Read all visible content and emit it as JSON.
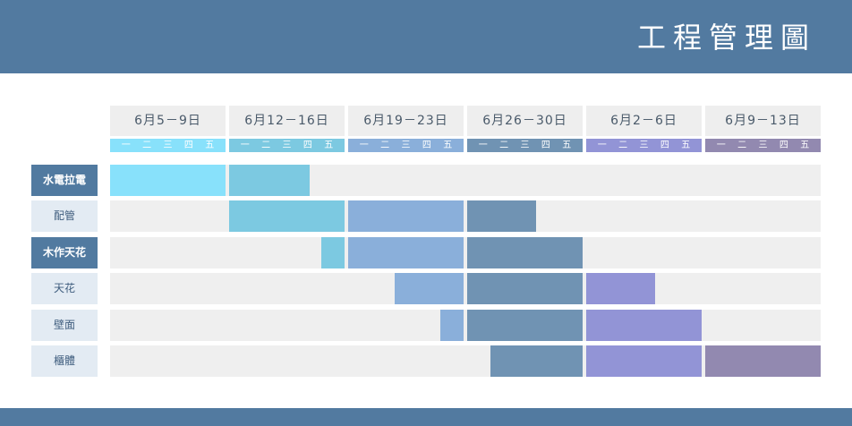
{
  "title": "工程管理圖",
  "colors": {
    "banner": "#527aa0",
    "track": "#efefef",
    "week_colors": [
      "#88e1fb",
      "#7cc9e1",
      "#8aafda",
      "#7093b3",
      "#9294d6",
      "#9289b0"
    ]
  },
  "chart_data": {
    "type": "gantt",
    "weeks": [
      {
        "label": "6月5－9日",
        "days": [
          "一",
          "二",
          "三",
          "四",
          "五"
        ]
      },
      {
        "label": "6月12－16日",
        "days": [
          "一",
          "二",
          "三",
          "四",
          "五"
        ]
      },
      {
        "label": "6月19－23日",
        "days": [
          "一",
          "二",
          "三",
          "四",
          "五"
        ]
      },
      {
        "label": "6月26－30日",
        "days": [
          "一",
          "二",
          "三",
          "四",
          "五"
        ]
      },
      {
        "label": "6月2－6日",
        "days": [
          "一",
          "二",
          "三",
          "四",
          "五"
        ]
      },
      {
        "label": "6月9－13日",
        "days": [
          "一",
          "二",
          "三",
          "四",
          "五"
        ]
      }
    ],
    "tasks": [
      {
        "name": "水電拉電",
        "style": "dark",
        "segments": [
          {
            "week": 0,
            "start": 0,
            "end": 1
          },
          {
            "week": 1,
            "start": 0,
            "end": 0.7
          }
        ]
      },
      {
        "name": "配管",
        "style": "light",
        "segments": [
          {
            "week": 1,
            "start": 0,
            "end": 1
          },
          {
            "week": 2,
            "start": 0,
            "end": 1
          },
          {
            "week": 3,
            "start": 0,
            "end": 0.6
          }
        ]
      },
      {
        "name": "木作天花",
        "style": "dark",
        "segments": [
          {
            "week": 1,
            "start": 0.8,
            "end": 1
          },
          {
            "week": 2,
            "start": 0,
            "end": 1
          },
          {
            "week": 3,
            "start": 0,
            "end": 1
          }
        ]
      },
      {
        "name": "天花",
        "style": "light",
        "segments": [
          {
            "week": 2,
            "start": 0.4,
            "end": 1
          },
          {
            "week": 3,
            "start": 0,
            "end": 1
          },
          {
            "week": 4,
            "start": 0,
            "end": 0.6
          }
        ]
      },
      {
        "name": "壁面",
        "style": "light",
        "segments": [
          {
            "week": 2,
            "start": 0.8,
            "end": 1
          },
          {
            "week": 3,
            "start": 0,
            "end": 1
          },
          {
            "week": 4,
            "start": 0,
            "end": 1
          }
        ]
      },
      {
        "name": "櫃體",
        "style": "light",
        "segments": [
          {
            "week": 3,
            "start": 0.2,
            "end": 1
          },
          {
            "week": 4,
            "start": 0,
            "end": 1
          },
          {
            "week": 5,
            "start": 0,
            "end": 1
          }
        ]
      }
    ]
  }
}
